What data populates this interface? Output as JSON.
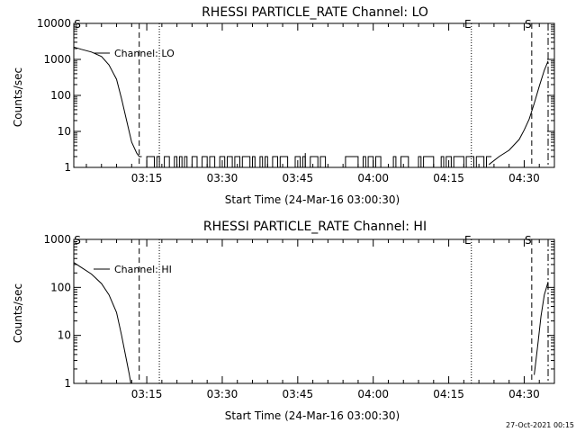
{
  "footer": {
    "timestamp": "27-Oct-2021 00:15"
  },
  "chart_data": [
    {
      "type": "line",
      "title": "RHESSI PARTICLE_RATE Channel: LO",
      "xlabel": "Start Time (24-Mar-16 03:00:30)",
      "ylabel": "Counts/sec",
      "yscale": "log",
      "xlim": [
        "03:00:30",
        "04:36:00"
      ],
      "ylim": [
        1,
        10000
      ],
      "xticks": [
        "03:15",
        "03:30",
        "03:45",
        "04:00",
        "04:15",
        "04:30"
      ],
      "yticks": [
        "1",
        "10",
        "100",
        "1000",
        "10000"
      ],
      "legend": "Channel: LO",
      "markers": [
        {
          "label": "S",
          "time": "03:00:30",
          "style": "solid"
        },
        {
          "label": "",
          "time": "03:13:30",
          "style": "dashed"
        },
        {
          "label": "",
          "time": "03:17:30",
          "style": "dotted"
        },
        {
          "label": "E",
          "time": "04:19:30",
          "style": "dotted"
        },
        {
          "label": "S",
          "time": "04:31:30",
          "style": "dashed"
        },
        {
          "label": "",
          "time": "04:34:45",
          "style": "dashdot"
        }
      ],
      "series": [
        {
          "x": [
            "03:00:30",
            "03:02:00",
            "03:04:00",
            "03:06:00",
            "03:07:30",
            "03:09:00",
            "03:10:00",
            "03:11:00",
            "03:12:00",
            "03:13:00",
            "03:13:30",
            "03:14:00"
          ],
          "y": [
            2200,
            1900,
            1600,
            1200,
            700,
            280,
            80,
            20,
            5,
            2.5,
            2,
            2
          ]
        },
        {
          "x": [
            "04:23:00",
            "04:25:00",
            "04:27:00",
            "04:29:00",
            "04:30:00",
            "04:31:00",
            "04:32:00",
            "04:33:00",
            "04:34:00",
            "04:34:45"
          ],
          "y": [
            1.2,
            2,
            3,
            6,
            11,
            22,
            60,
            180,
            500,
            900
          ]
        }
      ],
      "noise": {
        "from": "03:14:00",
        "to": "04:23:00",
        "low": 1,
        "high": 2,
        "spike": {
          "time": "03:46:30",
          "value": 2.5
        }
      }
    },
    {
      "type": "line",
      "title": "RHESSI PARTICLE_RATE Channel: HI",
      "xlabel": "Start Time (24-Mar-16 03:00:30)",
      "ylabel": "Counts/sec",
      "yscale": "log",
      "xlim": [
        "03:00:30",
        "04:36:00"
      ],
      "ylim": [
        1,
        1000
      ],
      "xticks": [
        "03:15",
        "03:30",
        "03:45",
        "04:00",
        "04:15",
        "04:30"
      ],
      "yticks": [
        "1",
        "10",
        "100",
        "1000"
      ],
      "legend": "Channel: HI",
      "markers": [
        {
          "label": "S",
          "time": "03:00:30",
          "style": "solid"
        },
        {
          "label": "",
          "time": "03:13:30",
          "style": "dashed"
        },
        {
          "label": "",
          "time": "03:17:30",
          "style": "dotted"
        },
        {
          "label": "E",
          "time": "04:19:30",
          "style": "dotted"
        },
        {
          "label": "S",
          "time": "04:31:30",
          "style": "dashed"
        },
        {
          "label": "",
          "time": "04:34:45",
          "style": "dashdot"
        }
      ],
      "series": [
        {
          "x": [
            "03:00:30",
            "03:02:00",
            "03:04:00",
            "03:06:00",
            "03:07:30",
            "03:09:00",
            "03:10:00",
            "03:10:45",
            "03:11:30",
            "03:11:50"
          ],
          "y": [
            330,
            260,
            190,
            120,
            70,
            30,
            10,
            4,
            1.6,
            1
          ]
        },
        {
          "x": [
            "04:32:00",
            "04:32:40",
            "04:33:20",
            "04:34:00",
            "04:34:45"
          ],
          "y": [
            1.5,
            6,
            25,
            70,
            130
          ]
        }
      ]
    }
  ]
}
